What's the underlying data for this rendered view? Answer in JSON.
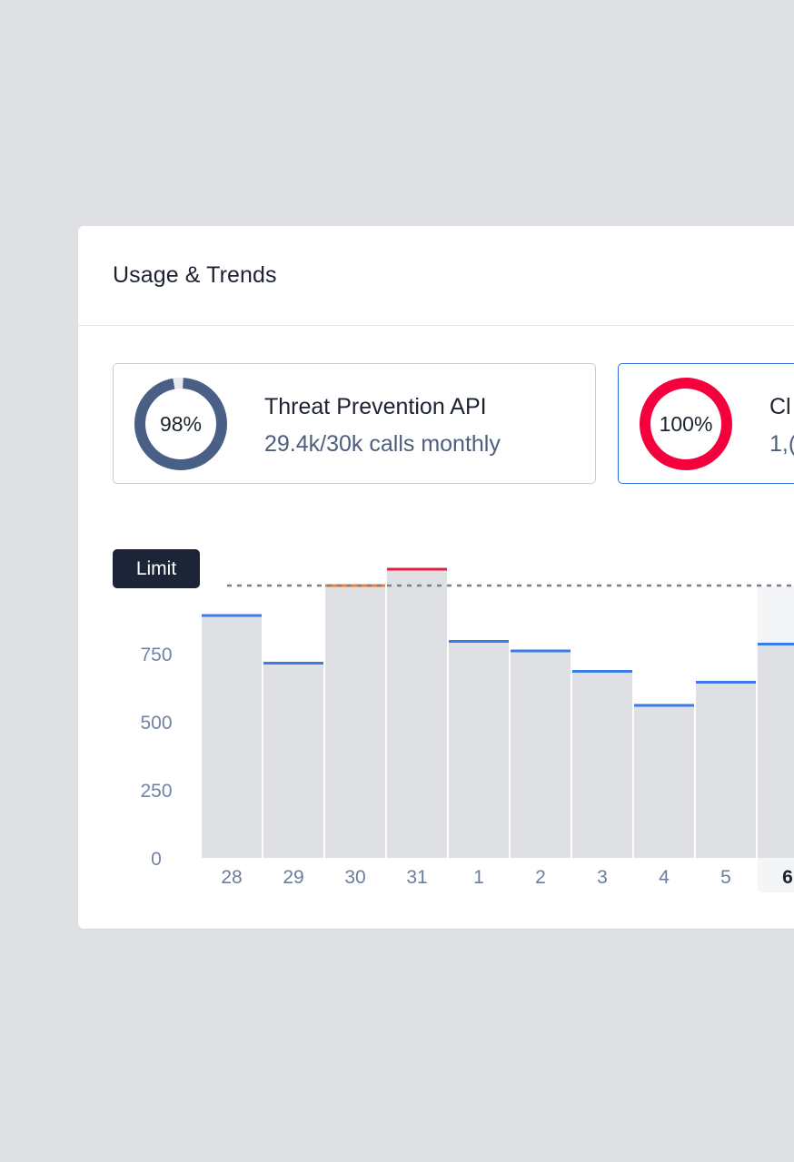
{
  "card": {
    "title": "Usage & Trends"
  },
  "tiles": [
    {
      "name": "Threat Prevention API",
      "detail": "29.4k/30k calls monthly",
      "percent_label": "98%",
      "percent": 98,
      "color": "#4a5f86"
    },
    {
      "name": "Cl",
      "detail": "1,(",
      "percent_label": "100%",
      "percent": 100,
      "color": "#f5003d"
    }
  ],
  "chart_data": {
    "type": "bar",
    "limit_label": "Limit",
    "limit": 1000,
    "ylim": [
      0,
      1000
    ],
    "yticks": [
      "0",
      "250",
      "500",
      "750"
    ],
    "categories": [
      "28",
      "29",
      "30",
      "31",
      "1",
      "2",
      "3",
      "4",
      "5",
      "6"
    ],
    "values": [
      890,
      715,
      1000,
      1060,
      795,
      760,
      685,
      560,
      645,
      785
    ],
    "cap_colors": [
      "#3b7be6",
      "#3b7be6",
      "#f07f3a",
      "#e21f3f",
      "#3b7be6",
      "#3b7be6",
      "#3b7be6",
      "#3b7be6",
      "#3b7be6",
      "#3b7be6"
    ],
    "highlighted_category": "6",
    "bar_color": "#dfe0e4"
  }
}
